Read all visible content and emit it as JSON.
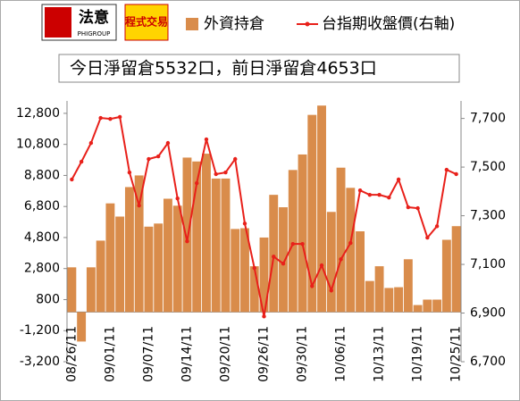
{
  "logos": {
    "brand": "法意",
    "brand_sub": "PHIGROUP",
    "product": "程式交易"
  },
  "chart_data": {
    "type": "bar-line",
    "note": "今日淨留倉5532口，前日淨留倉4653口",
    "categories": [
      "08/26/11",
      null,
      null,
      null,
      "09/01/11",
      null,
      null,
      null,
      "09/07/11",
      null,
      null,
      null,
      "09/14/11",
      null,
      null,
      null,
      "09/20/11",
      null,
      null,
      null,
      "09/26/11",
      null,
      null,
      null,
      "09/30/11",
      null,
      null,
      null,
      "10/06/11",
      null,
      null,
      null,
      "10/13/11",
      null,
      null,
      null,
      "10/19/11",
      null,
      null,
      null,
      "10/25/11"
    ],
    "series": [
      {
        "name": "外資持倉",
        "color": "#d98c4b",
        "kind": "bar",
        "axis": "y",
        "values": [
          2880,
          -1900,
          2880,
          4600,
          7000,
          6150,
          8050,
          8800,
          5500,
          5700,
          7300,
          6850,
          9950,
          9700,
          10200,
          8600,
          8600,
          5350,
          5400,
          2950,
          4800,
          7550,
          6750,
          9150,
          10150,
          12700,
          13300,
          6450,
          9300,
          8000,
          5200,
          2000,
          2950,
          1550,
          1600,
          3400,
          450,
          800,
          800,
          4653,
          5532
        ]
      },
      {
        "name": "台指期收盤價(右軸)",
        "color": "#e8201a",
        "kind": "line",
        "axis": "y2",
        "values": [
          7449,
          7522,
          7599,
          7702,
          7698,
          7706,
          7478,
          7342,
          7533,
          7544,
          7599,
          7371,
          7195,
          7434,
          7614,
          7471,
          7478,
          7533,
          7268,
          7085,
          6886,
          7132,
          7103,
          7184,
          7184,
          7011,
          7096,
          6993,
          7121,
          7188,
          7404,
          7386,
          7386,
          7375,
          7449,
          7335,
          7331,
          7210,
          7257,
          7489,
          7471
        ]
      }
    ],
    "ylim": [
      -3200,
      13600
    ],
    "yticks": [
      {
        "value": -3200,
        "label": "-3,200"
      },
      {
        "value": -1200,
        "label": "-1,200"
      },
      800,
      {
        "value": 2800,
        "label": "2,800"
      },
      {
        "value": 4800,
        "label": "4,800"
      },
      {
        "value": 6800,
        "label": "6,800"
      },
      {
        "value": 8800,
        "label": "8,800"
      },
      {
        "value": 10800,
        "label": "10,800"
      },
      {
        "value": 12800,
        "label": "12,800"
      }
    ],
    "y2lim": [
      6700,
      7772
    ],
    "y2ticks": [
      {
        "value": 6700,
        "label": "6,700"
      },
      {
        "value": 6900,
        "label": "6,900"
      },
      {
        "value": 7100,
        "label": "7,100"
      },
      {
        "value": 7300,
        "label": "7,300"
      },
      {
        "value": 7500,
        "label": "7,500"
      },
      {
        "value": 7700,
        "label": "7,700"
      }
    ]
  }
}
